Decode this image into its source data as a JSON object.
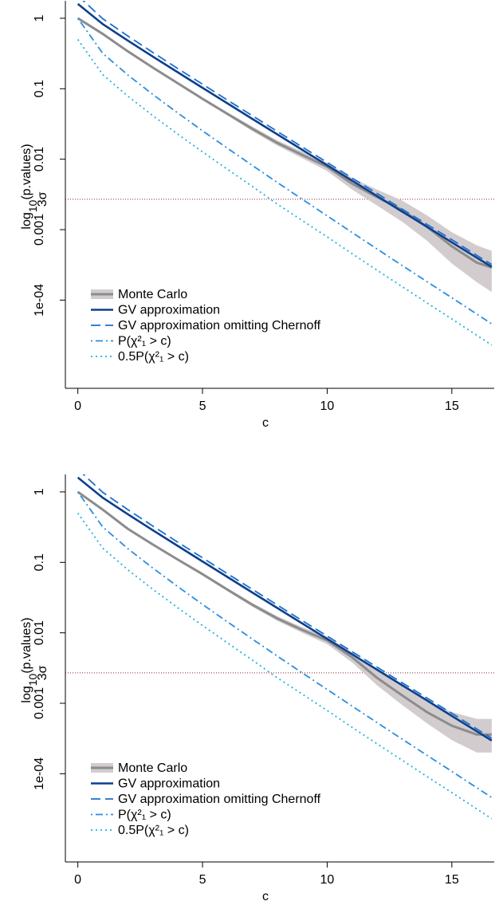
{
  "chart_data": [
    {
      "type": "line",
      "y_label": [
        "log",
        "10",
        "(p.values)"
      ],
      "x_label": "c",
      "xlim": [
        -0.5,
        16.7
      ],
      "xticks": [
        0,
        5,
        10,
        15
      ],
      "ylim": [
        5.6e-06,
        1.77
      ],
      "yticks": [
        1,
        0.1,
        0.01,
        0.001,
        {
          "value": 0.0001,
          "label": "1e-04"
        }
      ],
      "log_y": true,
      "legend": "bottom-left",
      "hline": {
        "value": 0.0027,
        "label": "3σ",
        "color": "#8b2323"
      },
      "x": [
        0,
        1,
        2,
        3,
        4,
        5,
        6,
        7,
        8,
        9,
        10,
        11,
        12,
        13,
        14,
        15,
        16,
        16.6
      ],
      "series": [
        {
          "name": "Monte Carlo",
          "color": "#8c8c8c",
          "band_color": "#d2ccce",
          "values": [
            1.0,
            0.6,
            0.34,
            0.2,
            0.12,
            0.072,
            0.044,
            0.027,
            0.017,
            0.0115,
            0.0078,
            0.0045,
            0.0029,
            0.0019,
            0.0011,
            0.00058,
            0.00034,
            0.00029
          ],
          "lower": [
            0.99,
            0.59,
            0.33,
            0.195,
            0.116,
            0.069,
            0.042,
            0.025,
            0.0156,
            0.0103,
            0.0068,
            0.0037,
            0.0022,
            0.0013,
            0.0007,
            0.00033,
            0.00018,
            0.00013
          ],
          "upper": [
            1.0,
            0.61,
            0.35,
            0.205,
            0.124,
            0.075,
            0.046,
            0.029,
            0.0185,
            0.0128,
            0.0089,
            0.0054,
            0.0037,
            0.0026,
            0.0016,
            0.00092,
            0.0006,
            0.0005
          ]
        },
        {
          "name": "GV approximation",
          "color": "#0d3f8c",
          "values": [
            1.6,
            0.826,
            0.483,
            0.287,
            0.172,
            0.103,
            0.062,
            0.0373,
            0.0225,
            0.0136,
            0.0082,
            0.00496,
            0.003,
            0.00181,
            0.0011,
            0.00066,
            0.0004,
            0.000296
          ]
        },
        {
          "name": "GV approximation omitting Chernoff",
          "color": "#1a6fd0",
          "dash": "12 6",
          "values": [
            2.1,
            0.984,
            0.562,
            0.329,
            0.194,
            0.116,
            0.069,
            0.0414,
            0.0248,
            0.0149,
            0.009,
            0.0054,
            0.00326,
            0.00196,
            0.00119,
            0.00072,
            0.000432,
            0.00032
          ]
        },
        {
          "name": "P(χ²₁ > c)",
          "color": "#2a8ee0",
          "dash": "2 4 9 4",
          "values": [
            1,
            0.3173,
            0.1573,
            0.0833,
            0.0455,
            0.0253,
            0.0143,
            0.00815,
            0.00468,
            0.0027,
            0.00157,
            0.000911,
            0.000532,
            0.000311,
            0.000183,
            0.000108,
            6.33e-05,
            4.6e-05
          ]
        },
        {
          "name": "0.5P(χ²₁ > c)",
          "color": "#1fb0e0",
          "dash": "2 4",
          "values": [
            0.5,
            0.1587,
            0.0787,
            0.0417,
            0.0228,
            0.0127,
            0.0072,
            0.0041,
            0.0023,
            0.00135,
            0.00079,
            0.000456,
            0.000266,
            0.000156,
            9.15e-05,
            5.4e-05,
            3.17e-05,
            2.3e-05
          ]
        }
      ]
    },
    {
      "type": "line",
      "y_label": [
        "log",
        "10",
        "(p.values)"
      ],
      "x_label": "c",
      "xlim": [
        -0.5,
        16.7
      ],
      "xticks": [
        0,
        5,
        10,
        15
      ],
      "ylim": [
        5.6e-06,
        1.77
      ],
      "yticks": [
        1,
        0.1,
        0.01,
        0.001,
        {
          "value": 0.0001,
          "label": "1e-04"
        }
      ],
      "log_y": true,
      "legend": "bottom-left",
      "hline": {
        "value": 0.0027,
        "label": "3σ",
        "color": "#8b2323"
      },
      "x": [
        0,
        1,
        2,
        3,
        4,
        5,
        6,
        7,
        8,
        9,
        10,
        11,
        12,
        13,
        14,
        15,
        16,
        16.6
      ],
      "series": [
        {
          "name": "Monte Carlo",
          "color": "#8c8c8c",
          "band_color": "#d2ccce",
          "values": [
            1.0,
            0.56,
            0.3,
            0.18,
            0.11,
            0.068,
            0.041,
            0.025,
            0.016,
            0.011,
            0.0078,
            0.0045,
            0.0023,
            0.0013,
            0.00075,
            0.00048,
            0.00036,
            0.00036
          ],
          "lower": [
            0.99,
            0.55,
            0.295,
            0.176,
            0.106,
            0.065,
            0.039,
            0.0235,
            0.0148,
            0.01,
            0.0069,
            0.0038,
            0.0018,
            0.00095,
            0.00052,
            0.0003,
            0.0002,
            0.0002
          ],
          "upper": [
            1.0,
            0.57,
            0.305,
            0.184,
            0.114,
            0.071,
            0.043,
            0.0265,
            0.0172,
            0.012,
            0.0088,
            0.0053,
            0.0029,
            0.0018,
            0.00108,
            0.00075,
            0.0006,
            0.0006
          ]
        },
        {
          "name": "GV approximation",
          "color": "#0d3f8c",
          "values": [
            1.6,
            0.826,
            0.483,
            0.287,
            0.172,
            0.103,
            0.062,
            0.0373,
            0.0225,
            0.0136,
            0.0082,
            0.00496,
            0.003,
            0.00181,
            0.0011,
            0.00066,
            0.0004,
            0.000296
          ]
        },
        {
          "name": "GV approximation omitting Chernoff",
          "color": "#1a6fd0",
          "dash": "12 6",
          "values": [
            2.1,
            0.984,
            0.562,
            0.329,
            0.194,
            0.116,
            0.069,
            0.0414,
            0.0248,
            0.0149,
            0.009,
            0.0054,
            0.00326,
            0.00196,
            0.00119,
            0.00072,
            0.000432,
            0.00032
          ]
        },
        {
          "name": "P(χ²₁ > c)",
          "color": "#2a8ee0",
          "dash": "2 4 9 4",
          "values": [
            1,
            0.3173,
            0.1573,
            0.0833,
            0.0455,
            0.0253,
            0.0143,
            0.00815,
            0.00468,
            0.0027,
            0.00157,
            0.000911,
            0.000532,
            0.000311,
            0.000183,
            0.000108,
            6.33e-05,
            4.6e-05
          ]
        },
        {
          "name": "0.5P(χ²₁ > c)",
          "color": "#1fb0e0",
          "dash": "2 4",
          "values": [
            0.5,
            0.1587,
            0.0787,
            0.0417,
            0.0228,
            0.0127,
            0.0072,
            0.0041,
            0.0023,
            0.00135,
            0.00079,
            0.000456,
            0.000266,
            0.000156,
            9.15e-05,
            5.4e-05,
            3.17e-05,
            2.3e-05
          ]
        }
      ]
    }
  ]
}
